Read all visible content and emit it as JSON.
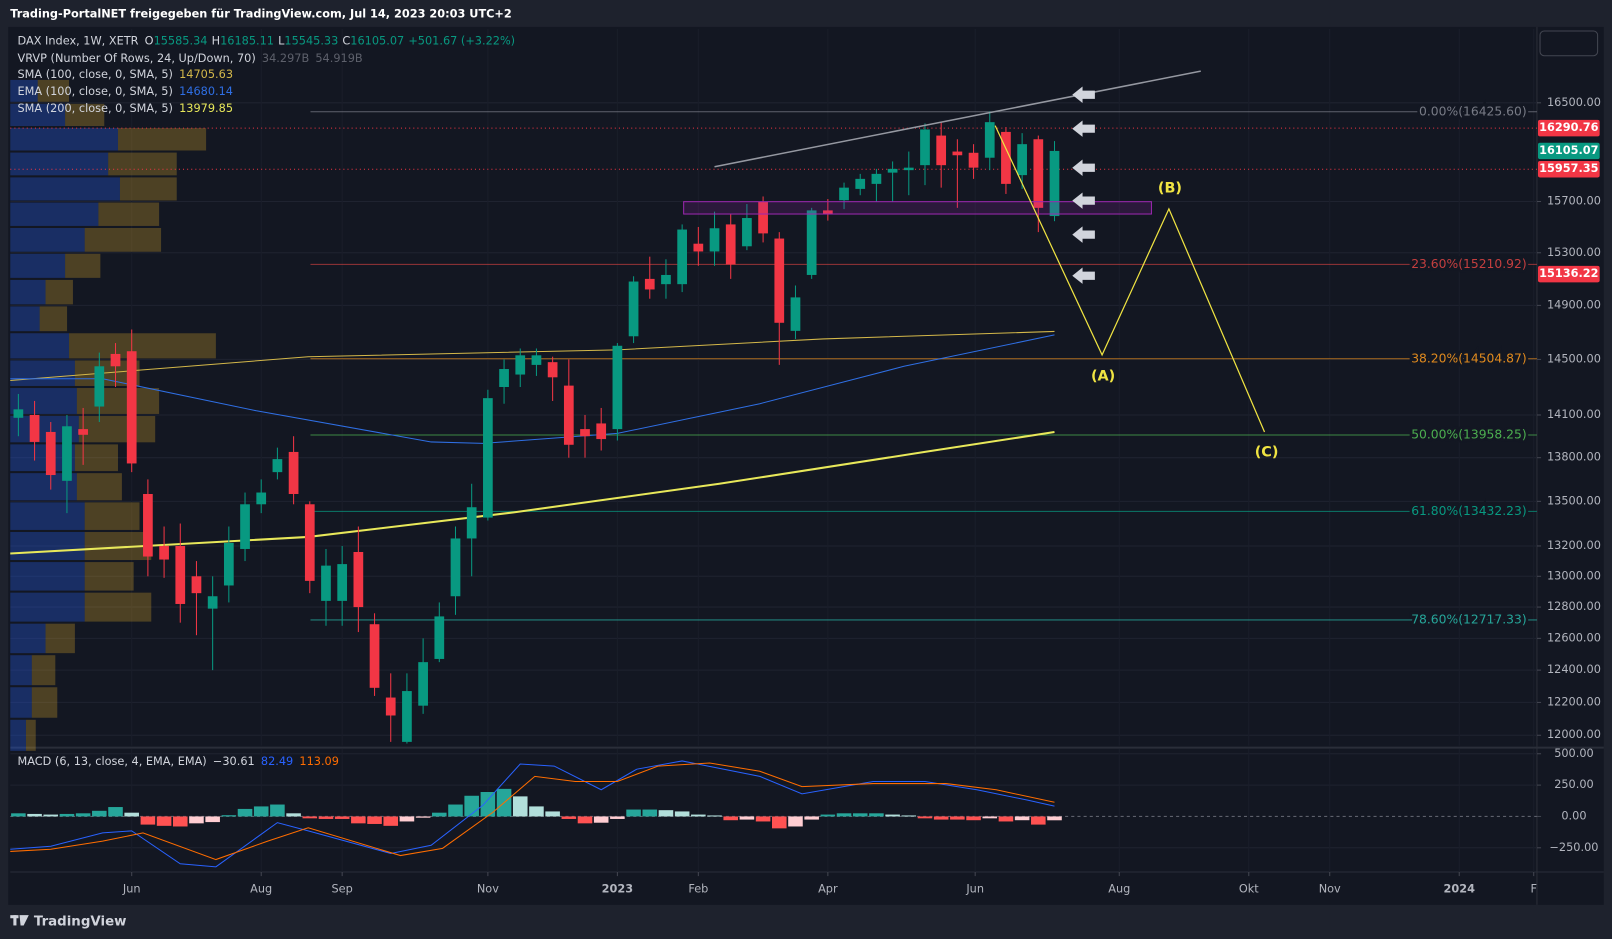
{
  "header": {
    "title": "Trading-PortalNET freigegeben für TradingView.com, Jul 14, 2023 20:03 UTC+2"
  },
  "footer": {
    "brand": "TradingView"
  },
  "chart_data": [
    {
      "type": "candlestick",
      "symbol": "DAX Index, 1W, XETR",
      "ohlc_labels": [
        "O",
        "H",
        "L",
        "C"
      ],
      "change": "+501.67 (+3.22%)",
      "up_color": "#089981",
      "down_color": "#f23645",
      "x": [
        0,
        1,
        2,
        3,
        4,
        5,
        6,
        7,
        8,
        9,
        10,
        11,
        12,
        13,
        14,
        15,
        16,
        17,
        18,
        19,
        20,
        21,
        22,
        23,
        24,
        25,
        26,
        27,
        28,
        29,
        30,
        31,
        32,
        33,
        34,
        35,
        36,
        37,
        38,
        39,
        40,
        41,
        42,
        43,
        44,
        45,
        46,
        47,
        48,
        49,
        50,
        51,
        52,
        53,
        54,
        55,
        56,
        57,
        58,
        59,
        60,
        61,
        62,
        63,
        64
      ],
      "candles": {
        "open": [
          14080,
          14100,
          13980,
          13640,
          14000,
          14160,
          14540,
          14560,
          13550,
          13200,
          13200,
          13000,
          12790,
          12940,
          13180,
          13480,
          13700,
          13840,
          13480,
          12840,
          12840,
          13160,
          12690,
          12230,
          11960,
          12180,
          12470,
          12870,
          13250,
          13390,
          14300,
          14390,
          14460,
          14480,
          14310,
          14000,
          14040,
          14000,
          14670,
          15100,
          15060,
          15060,
          15370,
          15310,
          15520,
          15350,
          15700,
          15410,
          14710,
          15130,
          15630,
          15710,
          15800,
          15840,
          15930,
          15950,
          15990,
          16230,
          16100,
          16090,
          16050,
          16260,
          15910,
          16200,
          15585.34
        ],
        "high": [
          14250,
          14200,
          14050,
          14100,
          14150,
          14550,
          14620,
          14720,
          13650,
          13330,
          13350,
          13100,
          13000,
          13330,
          13560,
          13650,
          13870,
          13950,
          13500,
          13180,
          13200,
          13330,
          12760,
          12380,
          12380,
          12600,
          12830,
          13330,
          13620,
          14280,
          14500,
          14580,
          14580,
          14520,
          14500,
          14100,
          14150,
          14620,
          15120,
          15270,
          15250,
          15520,
          15500,
          15620,
          15600,
          15680,
          15740,
          15460,
          15050,
          15650,
          15720,
          15850,
          15920,
          15960,
          16020,
          16100,
          16330,
          16340,
          16200,
          16160,
          16430,
          16300,
          16250,
          16230,
          16185.11
        ],
        "low": [
          13950,
          13780,
          13580,
          13420,
          13750,
          14050,
          14300,
          13700,
          13000,
          12990,
          12700,
          12620,
          12400,
          12830,
          13100,
          13420,
          13650,
          13480,
          12890,
          12680,
          12680,
          12640,
          12240,
          11960,
          11950,
          12130,
          12450,
          12750,
          13000,
          13370,
          14180,
          14300,
          14380,
          14200,
          13800,
          13800,
          13850,
          13920,
          14620,
          14950,
          14950,
          15000,
          15200,
          15200,
          15100,
          15320,
          15380,
          14460,
          14650,
          15100,
          15550,
          15640,
          15750,
          15700,
          15700,
          15750,
          15830,
          15810,
          15650,
          15880,
          15950,
          15760,
          15800,
          15460,
          15545.33
        ],
        "close": [
          14140,
          13910,
          13680,
          14020,
          13960,
          14450,
          14450,
          13760,
          13130,
          13110,
          12820,
          12890,
          12870,
          13220,
          13480,
          13560,
          13790,
          13550,
          12970,
          13070,
          13080,
          12800,
          12290,
          12120,
          12270,
          12450,
          12740,
          13250,
          13460,
          14220,
          14430,
          14530,
          14530,
          14370,
          13890,
          13950,
          13930,
          14600,
          15080,
          15020,
          15130,
          15480,
          15310,
          15490,
          15210,
          15570,
          15450,
          14770,
          14960,
          15630,
          15600,
          15810,
          15880,
          15920,
          15960,
          15970,
          16280,
          15990,
          16070,
          15970,
          16340,
          15840,
          16160,
          15650,
          16105.07
        ]
      },
      "xlim": [
        -0.5,
        93.8
      ],
      "ylim": [
        11938,
        17125
      ],
      "log_scale": true,
      "grid": true,
      "yticks": [
        {
          "value": 16500,
          "label": "16500.00"
        },
        {
          "value": 15700,
          "label": "15700.00"
        },
        {
          "value": 15300,
          "label": "15300.00"
        },
        {
          "value": 14900,
          "label": "14900.00"
        },
        {
          "value": 14500,
          "label": "14500.00"
        },
        {
          "value": 14100,
          "label": "14100.00"
        },
        {
          "value": 13800,
          "label": "13800.00"
        },
        {
          "value": 13500,
          "label": "13500.00"
        },
        {
          "value": 13200,
          "label": "13200.00"
        },
        {
          "value": 13000,
          "label": "13000.00"
        },
        {
          "value": 12800,
          "label": "12800.00"
        },
        {
          "value": 12600,
          "label": "12600.00"
        },
        {
          "value": 12400,
          "label": "12400.00"
        },
        {
          "value": 12200,
          "label": "12200.00"
        },
        {
          "value": 12000,
          "label": "12000.00"
        }
      ],
      "series": [
        {
          "name": "SMA (100, close, 0, SMA, 5)",
          "color": "#d4b84a",
          "width": 1,
          "x": [
            -0.5,
            17.9,
            37,
            49.7,
            64
          ],
          "values": [
            14347,
            14520,
            14570,
            14650,
            14705.63
          ]
        },
        {
          "name": "EMA (100, close, 0, SMA, 5)",
          "color": "#2f6fe4",
          "width": 1,
          "x": [
            -0.5,
            5.2,
            14.7,
            25.5,
            28.7,
            37,
            45.8,
            54.7,
            64
          ],
          "values": [
            14360,
            14360,
            14130,
            13910,
            13900,
            13970,
            14180,
            14450,
            14680.14
          ]
        },
        {
          "name": "SMA (200, close, 0, SMA, 5)",
          "color": "#e8e85a",
          "width": 2,
          "x": [
            -0.5,
            17.9,
            30.6,
            43.3,
            56,
            64
          ],
          "values": [
            13150,
            13260,
            13425,
            13620,
            13840,
            13979.85
          ]
        }
      ],
      "vrvp": {
        "name": "VRVP (Number Of Rows, 24, Up/Down, 70)",
        "readings": [
          "34.297B",
          "54.919B"
        ],
        "up_color": "#2962ff",
        "down_color": "#fbc02d",
        "bins": [
          11900,
          12100,
          12300,
          12500,
          12700,
          12900,
          13100,
          13300,
          13500,
          13700,
          13900,
          14100,
          14300,
          14500,
          14700,
          14900,
          15100,
          15300,
          15500,
          15700,
          15900,
          16100,
          16300,
          16500,
          16700
        ],
        "up": [
          0.8,
          1.1,
          1.1,
          1.8,
          3.8,
          3.8,
          3.8,
          3.8,
          3.4,
          3.3,
          3.5,
          3.4,
          3.3,
          3.0,
          1.5,
          1.8,
          2.8,
          3.8,
          4.5,
          5.6,
          5.0,
          5.5,
          2.8,
          1.4
        ],
        "down": [
          0.5,
          1.3,
          1.2,
          1.5,
          3.4,
          2.5,
          3.4,
          2.8,
          2.3,
          2.2,
          3.9,
          4.2,
          3.3,
          7.5,
          1.4,
          1.4,
          1.8,
          3.9,
          3.1,
          2.9,
          3.5,
          4.5,
          2.0,
          1.6
        ]
      },
      "fib_levels": [
        {
          "label": "0.00%(16425.60)",
          "value": 16425.6,
          "color": "#787b86"
        },
        {
          "label": "23.60%(15210.92)",
          "value": 15210.92,
          "color": "#c43f3f"
        },
        {
          "label": "38.20%(14504.87)",
          "value": 14504.87,
          "color": "#e08a1e"
        },
        {
          "label": "50.00%(13958.25)",
          "value": 13958.25,
          "color": "#4caf50"
        },
        {
          "label": "61.80%(13432.23)",
          "value": 13432.23,
          "color": "#089981"
        },
        {
          "label": "78.60%(12717.33)",
          "value": 12717.33,
          "color": "#26a69a"
        }
      ],
      "price_labels": [
        {
          "value": 16290.76,
          "color": "#f23645",
          "line": true
        },
        {
          "value": 15957.35,
          "color": "#f23645",
          "line": true
        },
        {
          "value": 15136.22,
          "color": "#f23645",
          "line": false
        }
      ],
      "annotations": [
        "(A)",
        "(B)",
        "(C)"
      ]
    },
    {
      "type": "macd",
      "name": "MACD (6, 13, close, 4, EMA, EMA)",
      "x": [
        0,
        1,
        2,
        3,
        4,
        5,
        6,
        7,
        8,
        9,
        10,
        11,
        12,
        13,
        14,
        15,
        16,
        17,
        18,
        19,
        20,
        21,
        22,
        23,
        24,
        25,
        26,
        27,
        28,
        29,
        30,
        31,
        32,
        33,
        34,
        35,
        36,
        37,
        38,
        39,
        40,
        41,
        42,
        43,
        44,
        45,
        46,
        47,
        48,
        49,
        50,
        51,
        52,
        53,
        54,
        55,
        56,
        57,
        58,
        59,
        60,
        61,
        62,
        63,
        64
      ],
      "histogram": {
        "values": [
          25,
          20,
          15,
          20,
          25,
          45,
          75,
          30,
          -65,
          -75,
          -80,
          -55,
          -45,
          10,
          60,
          80,
          95,
          25,
          -15,
          -20,
          -20,
          -55,
          -60,
          -75,
          -40,
          -10,
          30,
          95,
          165,
          195,
          220,
          160,
          80,
          40,
          -20,
          -55,
          -50,
          -20,
          55,
          55,
          50,
          40,
          15,
          8,
          -30,
          -25,
          -40,
          -95,
          -80,
          -25,
          15,
          25,
          25,
          25,
          15,
          8,
          -15,
          -25,
          -25,
          -30,
          -15,
          -40,
          -30,
          -65,
          -30.61
        ],
        "value_labels": [
          null,
          null,
          null,
          null,
          null,
          null,
          null,
          null,
          null,
          null,
          null,
          null,
          null,
          null,
          null,
          null,
          null,
          null,
          null,
          null,
          null,
          null,
          null,
          null,
          null,
          null,
          null,
          null,
          null,
          null,
          null,
          null,
          null,
          null,
          null,
          null,
          null,
          null,
          null,
          null,
          null,
          null,
          null,
          null,
          null,
          null,
          null,
          null,
          null,
          null,
          null,
          null,
          null,
          null,
          null,
          null,
          null,
          null,
          null,
          null,
          null,
          null,
          null,
          null,
          "−30.61"
        ],
        "colors": [
          "#26a69a",
          "#b2dfdb",
          "#ff5252",
          "#ffcdd2"
        ]
      },
      "series": [
        {
          "color": "#2962ff",
          "x": [
            -0.5,
            2,
            5.2,
            7,
            10,
            12.2,
            16,
            17.9,
            23,
            25.5,
            28.7,
            31,
            33.1,
            36,
            38.2,
            41,
            45.8,
            48.4,
            52.8,
            56,
            59.2,
            62.3,
            64
          ],
          "values": [
            -262,
            -238,
            -131,
            -115,
            -377,
            -402,
            -49,
            -115,
            -295,
            -230,
            90,
            418,
            402,
            213,
            377,
            443,
            320,
            180,
            279,
            279,
            213,
            131,
            82.49
          ]
        },
        {
          "color": "#ff6d00",
          "x": [
            -0.5,
            2,
            5.2,
            7.7,
            12.2,
            15.4,
            17.9,
            23.6,
            26.2,
            29.3,
            31.9,
            34.4,
            37,
            39.5,
            42.7,
            45.8,
            48.4,
            52.8,
            57.3,
            60.4,
            64
          ],
          "values": [
            -279,
            -262,
            -197,
            -131,
            -344,
            -197,
            -90,
            -312,
            -254,
            33,
            320,
            279,
            279,
            402,
            426,
            361,
            238,
            262,
            262,
            213,
            113.09
          ]
        }
      ],
      "xlim": [
        -0.5,
        93.8
      ],
      "ylim": [
        -443,
        541
      ],
      "grid": true,
      "yticks": [
        {
          "value": 500,
          "label": "500.00"
        },
        {
          "value": 250,
          "label": "250.00"
        },
        {
          "value": 0,
          "label": "0.00"
        },
        {
          "value": -250,
          "label": "−250.00"
        }
      ],
      "xticks": [
        {
          "value": 7,
          "label": "Jun"
        },
        {
          "value": 15,
          "label": "Aug"
        },
        {
          "value": 20,
          "label": "Sep"
        },
        {
          "value": 29,
          "label": "Nov"
        },
        {
          "value": 37,
          "label": "2023"
        },
        {
          "value": 42,
          "label": "Feb"
        },
        {
          "value": 50,
          "label": "Apr"
        },
        {
          "value": 59.1,
          "label": "Jun"
        },
        {
          "value": 68,
          "label": "Aug"
        },
        {
          "value": 76,
          "label": "Okt"
        },
        {
          "value": 81,
          "label": "Nov"
        },
        {
          "value": 89,
          "label": "2024"
        },
        {
          "value": 93.6,
          "label": "F"
        }
      ]
    }
  ]
}
